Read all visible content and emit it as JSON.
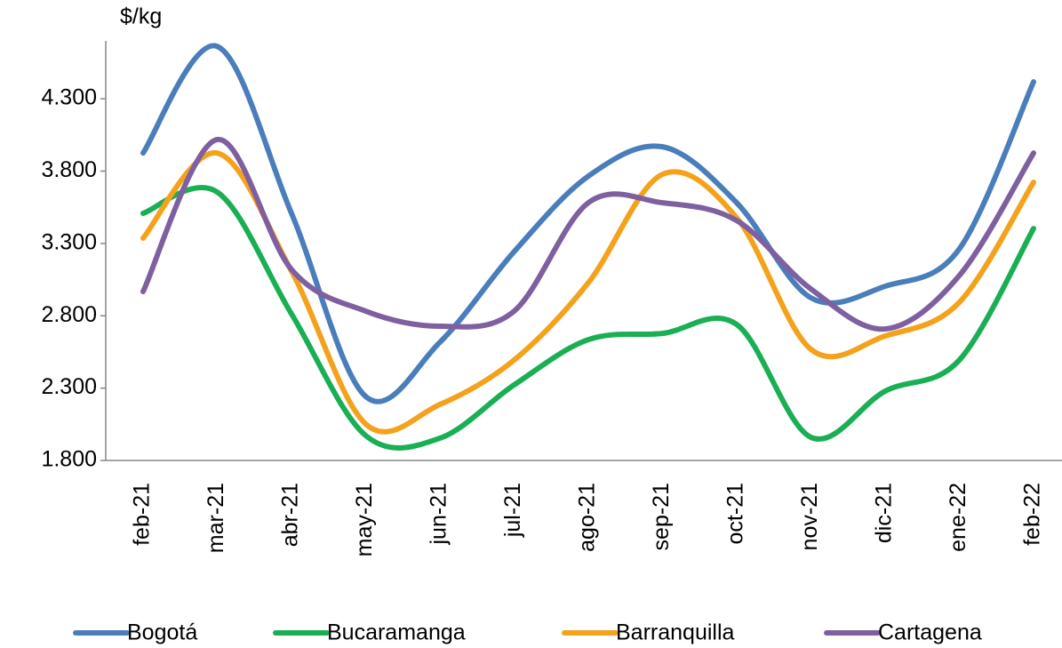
{
  "chart_data": {
    "type": "line",
    "y_label": "$/kg",
    "categories": [
      "feb-21",
      "mar-21",
      "abr-21",
      "may-21",
      "jun-21",
      "jul-21",
      "ago-21",
      "sep-21",
      "oct-21",
      "nov-21",
      "dic-21",
      "ene-22",
      "feb-22"
    ],
    "series": [
      {
        "name": "Bogotá",
        "color": "#4a7ebb",
        "values": [
          3925,
          4662,
          3508,
          2242,
          2617,
          3243,
          3765,
          3968,
          3581,
          2924,
          3004,
          3262,
          4417
        ]
      },
      {
        "name": "Bucaramanga",
        "color": "#1aaf54",
        "values": [
          3508,
          3655,
          2813,
          1972,
          1954,
          2322,
          2635,
          2678,
          2740,
          1960,
          2279,
          2494,
          3403
        ]
      },
      {
        "name": "Barranquilla",
        "color": "#f4a21c",
        "values": [
          3336,
          3925,
          3108,
          2052,
          2187,
          2494,
          3028,
          3778,
          3477,
          2568,
          2660,
          2893,
          3723
        ]
      },
      {
        "name": "Cartagena",
        "color": "#7e60a0",
        "values": [
          2967,
          4018,
          3120,
          2832,
          2728,
          2832,
          3581,
          3581,
          3458,
          2985,
          2709,
          3078,
          3925
        ]
      }
    ],
    "ylim": [
      1800,
      4700
    ],
    "yticks": [
      {
        "value": 1800,
        "label": "1.800"
      },
      {
        "value": 2300,
        "label": "2.300"
      },
      {
        "value": 2800,
        "label": "2.800"
      },
      {
        "value": 3300,
        "label": "3.300"
      },
      {
        "value": 3800,
        "label": "3.800"
      },
      {
        "value": 4300,
        "label": "4.300"
      }
    ],
    "legend": "bottom"
  }
}
